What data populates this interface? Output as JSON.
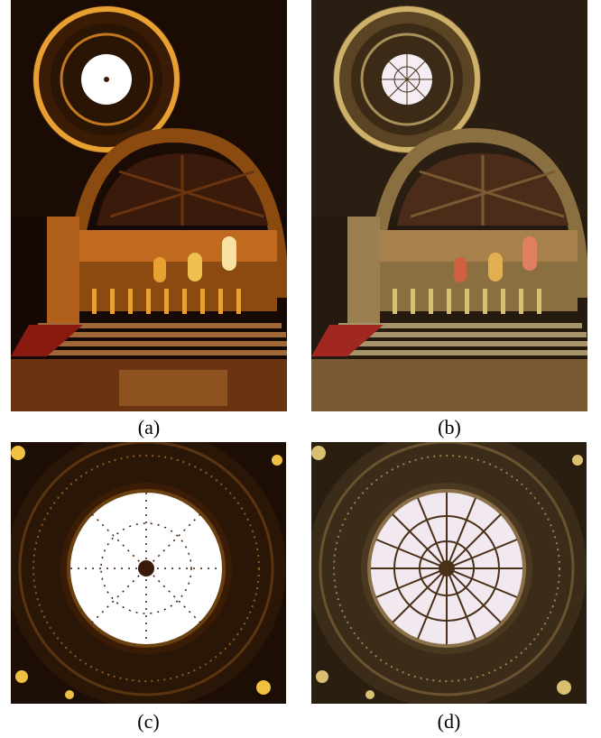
{
  "panels": [
    {
      "id": "a",
      "caption": "(a)",
      "palette": {
        "bg": "#140904",
        "stone": "#8a4a10",
        "glow": "#e8a030",
        "rib": "#3a1a08",
        "sky": "#ffffff",
        "floor": "#6a3410",
        "stair": "#a06838",
        "accent": "#f0b040"
      }
    },
    {
      "id": "b",
      "caption": "(b)",
      "palette": {
        "bg": "#241a10",
        "stone": "#8a7040",
        "glow": "#cdb06a",
        "rib": "#4a3018",
        "sky": "#f4eef4",
        "floor": "#7a5a34",
        "stair": "#a8946a",
        "accent": "#d8c070"
      }
    },
    {
      "id": "c",
      "caption": "(c)",
      "palette": {
        "bg": "#1c0e04",
        "ring": "#5a3410",
        "ring2": "#8a5a20",
        "sky": "#ffffff",
        "rib": "#3a1a08",
        "accent": "#f0c040"
      }
    },
    {
      "id": "d",
      "caption": "(d)",
      "palette": {
        "bg": "#2a1e10",
        "ring": "#6a5230",
        "ring2": "#9a8050",
        "sky": "#f2e8f0",
        "rib": "#4a3018",
        "accent": "#d8c070"
      }
    }
  ]
}
